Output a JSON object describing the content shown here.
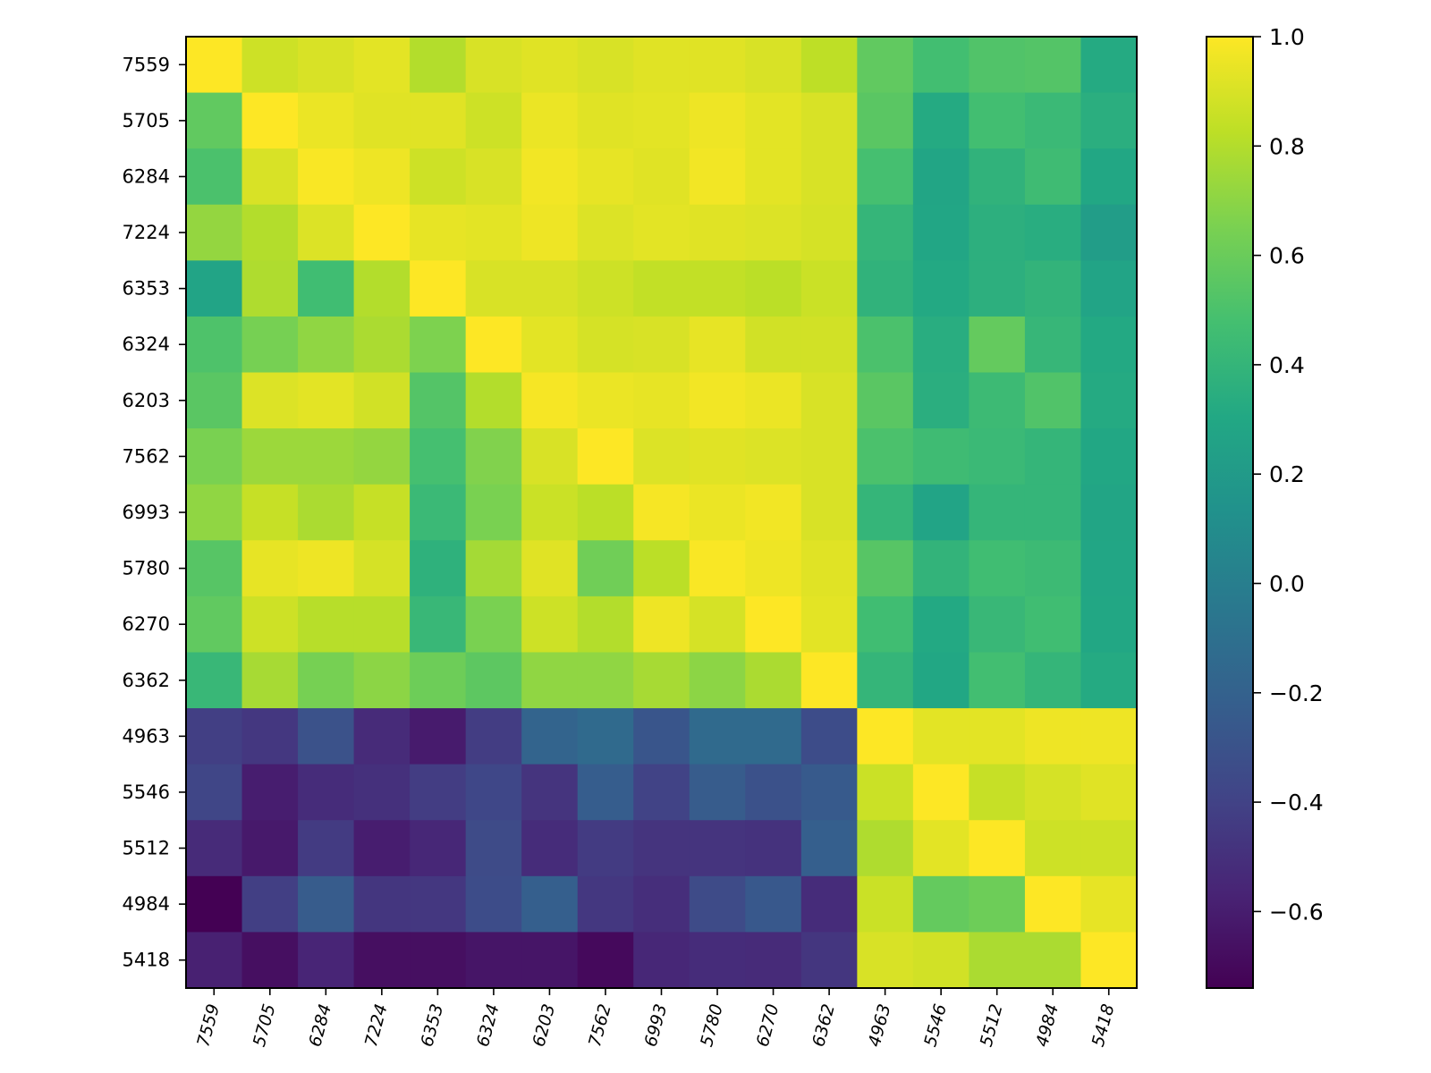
{
  "chart_data": {
    "type": "heatmap",
    "title": "",
    "xlabel": "",
    "ylabel": "",
    "row_labels": [
      "7559",
      "5705",
      "6284",
      "7224",
      "6353",
      "6324",
      "6203",
      "7562",
      "6993",
      "5780",
      "6270",
      "6362",
      "4963",
      "5546",
      "5512",
      "4984",
      "5418"
    ],
    "col_labels": [
      "7559",
      "5705",
      "6284",
      "7224",
      "6353",
      "6324",
      "6203",
      "7562",
      "6993",
      "5780",
      "6270",
      "6362",
      "4963",
      "5546",
      "5512",
      "4984",
      "5418"
    ],
    "values": [
      [
        1.0,
        0.87,
        0.9,
        0.93,
        0.8,
        0.9,
        0.92,
        0.9,
        0.92,
        0.92,
        0.9,
        0.83,
        0.57,
        0.47,
        0.52,
        0.53,
        0.32
      ],
      [
        0.57,
        1.0,
        0.95,
        0.92,
        0.92,
        0.87,
        0.95,
        0.92,
        0.93,
        0.96,
        0.93,
        0.9,
        0.55,
        0.32,
        0.47,
        0.43,
        0.35
      ],
      [
        0.5,
        0.9,
        0.99,
        0.96,
        0.87,
        0.9,
        0.97,
        0.94,
        0.92,
        0.97,
        0.93,
        0.9,
        0.48,
        0.28,
        0.38,
        0.45,
        0.3
      ],
      [
        0.72,
        0.8,
        0.91,
        1.0,
        0.94,
        0.93,
        0.96,
        0.91,
        0.93,
        0.92,
        0.91,
        0.89,
        0.4,
        0.29,
        0.36,
        0.34,
        0.22
      ],
      [
        0.27,
        0.79,
        0.46,
        0.8,
        1.0,
        0.9,
        0.9,
        0.87,
        0.84,
        0.84,
        0.82,
        0.86,
        0.38,
        0.31,
        0.36,
        0.39,
        0.27
      ],
      [
        0.51,
        0.64,
        0.71,
        0.78,
        0.66,
        1.0,
        0.93,
        0.89,
        0.9,
        0.94,
        0.88,
        0.88,
        0.5,
        0.34,
        0.58,
        0.41,
        0.31
      ],
      [
        0.55,
        0.91,
        0.93,
        0.88,
        0.53,
        0.8,
        0.98,
        0.95,
        0.94,
        0.97,
        0.95,
        0.9,
        0.55,
        0.35,
        0.44,
        0.52,
        0.32
      ],
      [
        0.65,
        0.74,
        0.74,
        0.72,
        0.48,
        0.67,
        0.9,
        1.0,
        0.91,
        0.92,
        0.91,
        0.9,
        0.5,
        0.45,
        0.43,
        0.4,
        0.3
      ],
      [
        0.71,
        0.85,
        0.78,
        0.85,
        0.43,
        0.65,
        0.86,
        0.82,
        0.98,
        0.95,
        0.97,
        0.9,
        0.4,
        0.27,
        0.4,
        0.4,
        0.28
      ],
      [
        0.54,
        0.94,
        0.96,
        0.89,
        0.37,
        0.76,
        0.92,
        0.62,
        0.82,
        0.99,
        0.96,
        0.92,
        0.54,
        0.39,
        0.46,
        0.44,
        0.29
      ],
      [
        0.57,
        0.87,
        0.81,
        0.81,
        0.42,
        0.65,
        0.87,
        0.8,
        0.96,
        0.89,
        1.0,
        0.93,
        0.46,
        0.31,
        0.42,
        0.46,
        0.3
      ],
      [
        0.42,
        0.77,
        0.64,
        0.7,
        0.61,
        0.56,
        0.71,
        0.71,
        0.77,
        0.7,
        0.78,
        1.0,
        0.4,
        0.3,
        0.47,
        0.4,
        0.32
      ],
      [
        -0.42,
        -0.46,
        -0.3,
        -0.53,
        -0.61,
        -0.43,
        -0.18,
        -0.14,
        -0.28,
        -0.14,
        -0.14,
        -0.34,
        1.0,
        0.93,
        0.93,
        0.96,
        0.96
      ],
      [
        -0.38,
        -0.6,
        -0.52,
        -0.5,
        -0.43,
        -0.37,
        -0.48,
        -0.23,
        -0.4,
        -0.24,
        -0.31,
        -0.25,
        0.86,
        1.0,
        0.85,
        0.89,
        0.92
      ],
      [
        -0.53,
        -0.62,
        -0.44,
        -0.6,
        -0.55,
        -0.35,
        -0.52,
        -0.44,
        -0.48,
        -0.48,
        -0.49,
        -0.22,
        0.79,
        0.93,
        1.0,
        0.87,
        0.87
      ],
      [
        -0.74,
        -0.42,
        -0.24,
        -0.47,
        -0.46,
        -0.34,
        -0.22,
        -0.46,
        -0.51,
        -0.35,
        -0.26,
        -0.52,
        0.86,
        0.58,
        0.61,
        1.0,
        0.94
      ],
      [
        -0.58,
        -0.67,
        -0.56,
        -0.67,
        -0.67,
        -0.64,
        -0.64,
        -0.7,
        -0.55,
        -0.52,
        -0.53,
        -0.47,
        0.9,
        0.88,
        0.78,
        0.78,
        1.0
      ]
    ],
    "colorbar": {
      "min": -0.74,
      "max": 1.0,
      "colormap": "viridis",
      "tick_values": [
        1.0,
        0.8,
        0.6,
        0.4,
        0.2,
        0.0,
        -0.2,
        -0.4,
        -0.6
      ],
      "tick_labels": [
        "1.0",
        "0.8",
        "0.6",
        "0.4",
        "0.2",
        "0.0",
        "−0.2",
        "−0.4",
        "−0.6"
      ]
    },
    "grid": false,
    "legend": "none"
  }
}
